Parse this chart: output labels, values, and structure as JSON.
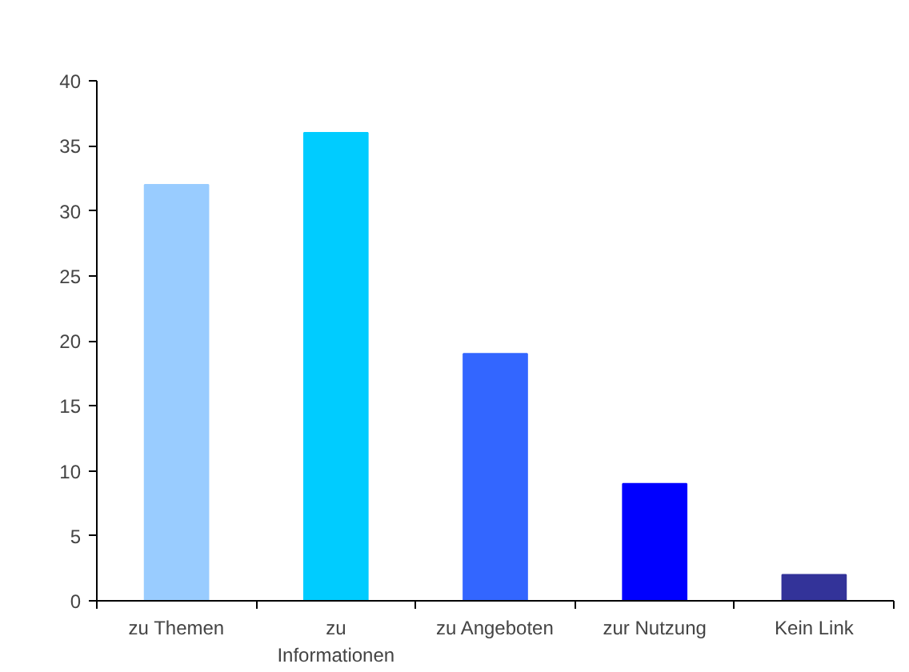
{
  "chart_data": {
    "type": "bar",
    "categories": [
      "zu Themen",
      "zu Informationen",
      "zu Angeboten",
      "zur Nutzung",
      "Kein Link"
    ],
    "values": [
      32,
      36,
      19,
      9,
      2
    ],
    "colors": [
      "#99ccff",
      "#00ccff",
      "#3366ff",
      "#0000ff",
      "#333399"
    ],
    "ylim": [
      0,
      40
    ],
    "yticks": [
      0,
      5,
      10,
      15,
      20,
      25,
      30,
      35,
      40
    ]
  }
}
